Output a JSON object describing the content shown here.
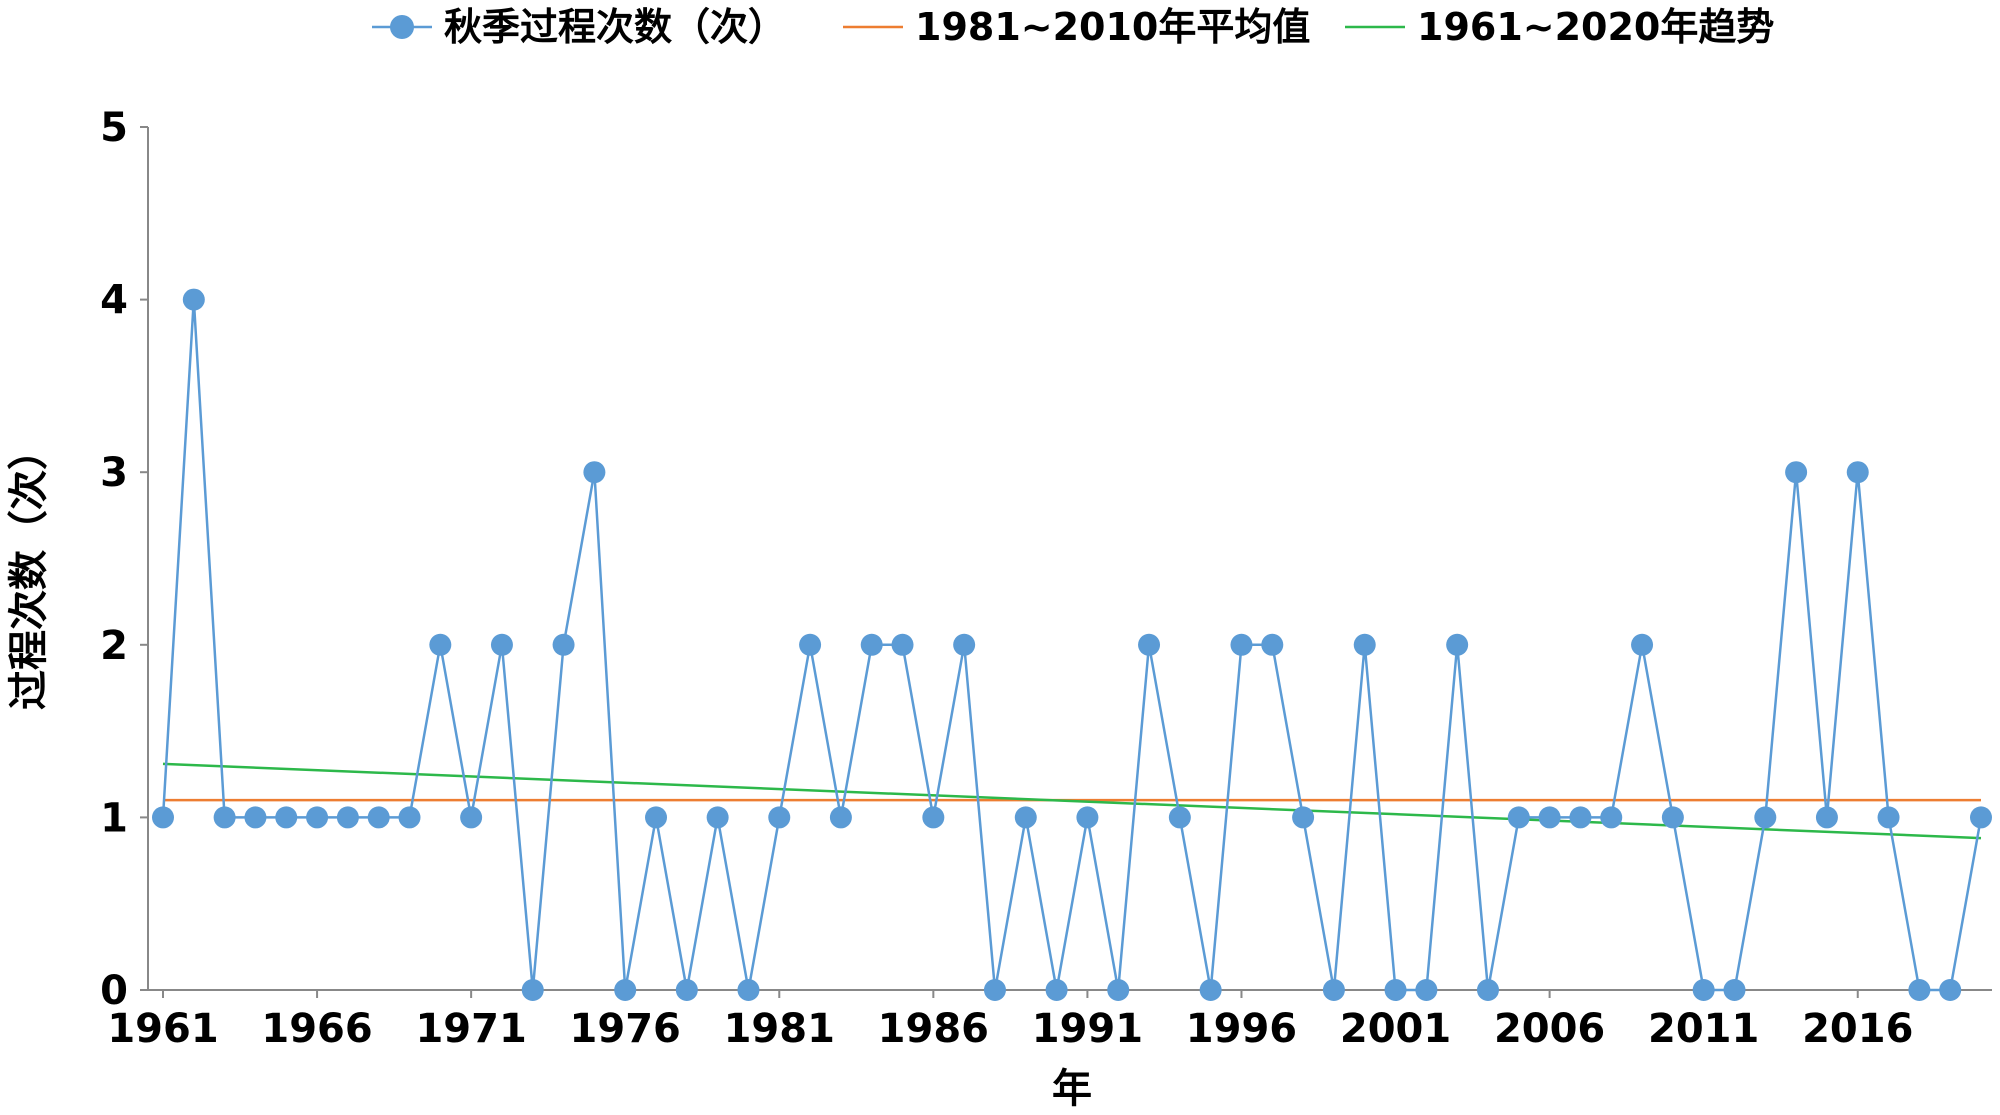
{
  "chart_data": {
    "type": "line",
    "xlabel": "年",
    "ylabel": "过程次数（次）",
    "ylim": [
      0,
      5
    ],
    "xlim": [
      1961,
      2020
    ],
    "y_ticks": [
      "0",
      "1",
      "2",
      "3",
      "4",
      "5"
    ],
    "x_ticks": [
      "1961",
      "1966",
      "1971",
      "1976",
      "1981",
      "1986",
      "1991",
      "1996",
      "2001",
      "2006",
      "2011",
      "2016"
    ],
    "legend_position": "top",
    "grid": false,
    "series": [
      {
        "name": "秋季过程次数（次）",
        "kind": "line-markers",
        "color": "#5b9bd5",
        "x": [
          1961,
          1962,
          1963,
          1964,
          1965,
          1966,
          1967,
          1968,
          1969,
          1970,
          1971,
          1972,
          1973,
          1974,
          1975,
          1976,
          1977,
          1978,
          1979,
          1980,
          1981,
          1982,
          1983,
          1984,
          1985,
          1986,
          1987,
          1988,
          1989,
          1990,
          1991,
          1992,
          1993,
          1994,
          1995,
          1996,
          1997,
          1998,
          1999,
          2000,
          2001,
          2002,
          2003,
          2004,
          2005,
          2006,
          2007,
          2008,
          2009,
          2010,
          2011,
          2012,
          2013,
          2014,
          2015,
          2016,
          2017,
          2018,
          2019,
          2020
        ],
        "values": [
          1,
          4,
          1,
          1,
          1,
          1,
          1,
          1,
          1,
          2,
          1,
          2,
          0,
          2,
          3,
          0,
          1,
          0,
          1,
          0,
          1,
          2,
          1,
          2,
          2,
          1,
          2,
          0,
          1,
          0,
          1,
          0,
          2,
          1,
          0,
          2,
          2,
          1,
          0,
          2,
          0,
          0,
          2,
          0,
          1,
          1,
          1,
          1,
          2,
          1,
          0,
          0,
          1,
          3,
          1,
          3,
          1,
          0,
          0,
          1
        ]
      },
      {
        "name": "1981~2010年平均值",
        "kind": "line",
        "color": "#ed7d31",
        "x": [
          1961,
          2020
        ],
        "values": [
          1.1,
          1.1
        ]
      },
      {
        "name": "1961~2020年趋势",
        "kind": "line",
        "color": "#2db84a",
        "x": [
          1961,
          2020
        ],
        "values": [
          1.31,
          0.88
        ]
      }
    ]
  }
}
